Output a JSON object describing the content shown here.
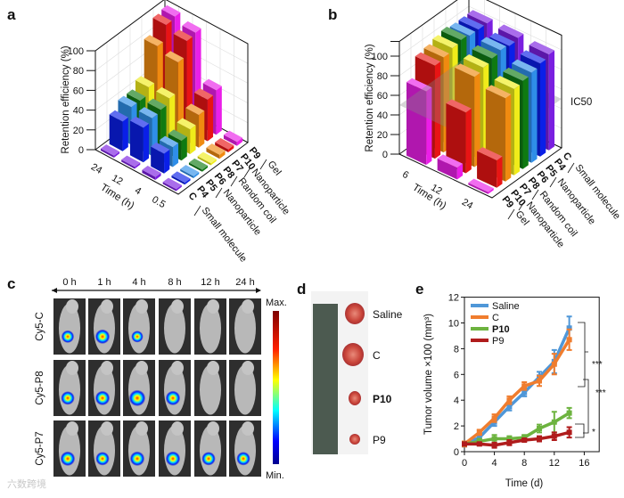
{
  "panels": {
    "a": "a",
    "b": "b",
    "c": "c",
    "d": "d",
    "e": "e"
  },
  "colors": {
    "C": "#7a1fe0",
    "P4": "#0a1fe8",
    "P5": "#2f8ee8",
    "P6": "#0f7a12",
    "P8": "#f0ec1a",
    "P7": "#f08a10",
    "P10": "#e81414",
    "P9": "#ea1ee8"
  },
  "chart_data": [
    {
      "id": "a",
      "type": "bar3d",
      "ylabel": "Retention efficiency (%)",
      "xlabel": "Time (h)",
      "yticks": [
        "0",
        "20",
        "40",
        "60",
        "80",
        "100"
      ],
      "ylim": [
        0,
        100
      ],
      "time": [
        "24",
        "12",
        "4",
        "0.5"
      ],
      "series_labels": [
        "C",
        "P4",
        "P5",
        "P6",
        "P8",
        "P7",
        "P10",
        "P9"
      ],
      "groups": [
        "Small molecule",
        "Nanoparticle",
        "Random coil",
        "Nanoparticle",
        "Gel"
      ],
      "values": {
        "24": [
          2,
          30,
          38,
          38,
          45,
          80,
          95,
          97
        ],
        "12": [
          2,
          35,
          38,
          40,
          45,
          75,
          90,
          92
        ],
        "4": [
          3,
          20,
          20,
          20,
          25,
          33,
          42,
          45
        ],
        "0.5": [
          2,
          2,
          2,
          2,
          2,
          4,
          3,
          4
        ]
      }
    },
    {
      "id": "b",
      "type": "bar3d",
      "ylabel": "Retention efficiency (%)",
      "xlabel": "Time (h)",
      "yticks": [
        "0",
        "20",
        "40",
        "60",
        "80",
        "100"
      ],
      "ylim": [
        0,
        115
      ],
      "time": [
        "6",
        "12",
        "24"
      ],
      "series_labels": [
        "P9",
        "P10",
        "P7",
        "P8",
        "P6",
        "P5",
        "P4",
        "C"
      ],
      "groups": [
        "Gel",
        "Nanoparticle",
        "Random coil",
        "Nanoparticle",
        "Small molecule"
      ],
      "annotation": "IC50",
      "annotation_value": 50,
      "values": {
        "6": [
          75,
          95,
          97,
          100,
          102,
          100,
          100,
          100
        ],
        "12": [
          12,
          62,
          92,
          95,
          98,
          100,
          98,
          100
        ],
        "24": [
          2,
          28,
          85,
          88,
          90,
          92,
          95,
          98
        ]
      }
    },
    {
      "id": "e",
      "type": "line",
      "xlabel": "Time (d)",
      "ylabel": "Tumor volume ×100 (mm³)",
      "xlim": [
        0,
        18
      ],
      "ylim": [
        0,
        12
      ],
      "xticks": [
        "0",
        "4",
        "8",
        "12",
        "16"
      ],
      "yticks": [
        "0",
        "2",
        "4",
        "6",
        "8",
        "10",
        "12"
      ],
      "x": [
        0,
        2,
        4,
        6,
        8,
        10,
        12,
        14
      ],
      "series": [
        {
          "name": "Saline",
          "color": "#4f97d8",
          "marker": "circle",
          "values": [
            0.6,
            1.1,
            2.3,
            3.5,
            4.6,
            5.8,
            7.0,
            9.6
          ],
          "err": [
            0.2,
            0.2,
            0.3,
            0.3,
            0.3,
            0.4,
            0.9,
            0.9
          ]
        },
        {
          "name": "C",
          "color": "#f07d2e",
          "marker": "square",
          "values": [
            0.6,
            1.5,
            2.6,
            4.0,
            5.1,
            5.5,
            6.8,
            8.7
          ],
          "err": [
            0.2,
            0.2,
            0.3,
            0.3,
            0.3,
            0.4,
            0.8,
            0.8
          ]
        },
        {
          "name": "P10",
          "color": "#6db33f",
          "marker": "triangle",
          "values": [
            0.6,
            0.8,
            1.0,
            1.0,
            1.1,
            1.8,
            2.3,
            3.0
          ],
          "err": [
            0.1,
            0.2,
            0.3,
            0.2,
            0.2,
            0.3,
            0.8,
            0.4
          ]
        },
        {
          "name": "P9",
          "color": "#b01c1c",
          "marker": "diamond",
          "values": [
            0.6,
            0.6,
            0.5,
            0.7,
            0.9,
            1.0,
            1.2,
            1.5
          ],
          "err": [
            0.1,
            0.1,
            0.2,
            0.2,
            0.1,
            0.2,
            0.3,
            0.4
          ]
        }
      ],
      "significance": [
        "***",
        "***",
        "*"
      ]
    }
  ],
  "imaging": {
    "timepoints": [
      "0 h",
      "1 h",
      "4 h",
      "8 h",
      "12 h",
      "24 h"
    ],
    "rows": [
      {
        "label": "Cy5-C",
        "signal": [
          0.6,
          0.8,
          0.5,
          0,
          0,
          0
        ]
      },
      {
        "label": "Cy5-P8",
        "signal": [
          0.7,
          0.8,
          1.0,
          0.8,
          0,
          0
        ]
      },
      {
        "label": "Cy5-P7",
        "signal": [
          0.8,
          0.7,
          0.8,
          0.8,
          0.7,
          0.7
        ]
      }
    ],
    "scale_max": "Max.",
    "scale_min": "Min."
  },
  "tumors": {
    "labels": [
      "Saline",
      "C",
      "P10",
      "P9"
    ]
  },
  "watermark": "六数跨境"
}
